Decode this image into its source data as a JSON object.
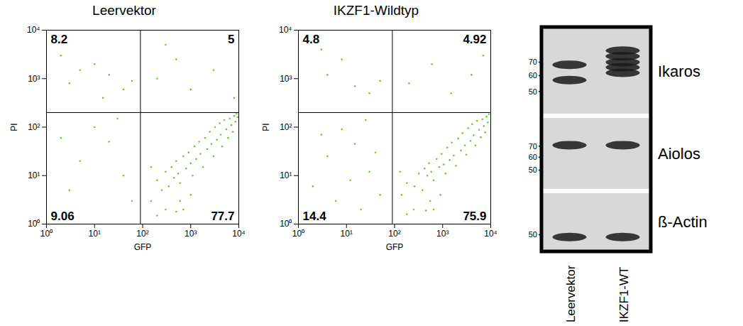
{
  "chart_data": [
    {
      "type": "scatter",
      "title": "Leervektor",
      "x_label": "GFP",
      "y_label": "PI",
      "color": "#66cc33",
      "marker": "dot",
      "log": true,
      "xlim": [
        1,
        10000
      ],
      "ylim": [
        1,
        10000
      ],
      "xticks": [
        {
          "value": 1,
          "label": "10⁰"
        },
        {
          "value": 10,
          "label": "10¹"
        },
        {
          "value": 100,
          "label": "10²"
        },
        {
          "value": 1000,
          "label": "10³"
        },
        {
          "value": 10000,
          "label": "10⁴"
        }
      ],
      "yticks": [
        {
          "value": 1,
          "label": "10⁰"
        },
        {
          "value": 10,
          "label": "10¹"
        },
        {
          "value": 100,
          "label": "10²"
        },
        {
          "value": 1000,
          "label": "10³"
        },
        {
          "value": 10000,
          "label": "10⁴"
        }
      ],
      "gate_x": 90,
      "gate_y": 200,
      "quadrants": {
        "top_left": 8.2,
        "top_right": 5,
        "bottom_left": 9.06,
        "bottom_right": 77.7
      },
      "x": [
        150,
        200,
        250,
        300,
        350,
        400,
        450,
        500,
        550,
        600,
        700,
        800,
        900,
        1000,
        1100,
        1200,
        1300,
        1500,
        1600,
        1800,
        2000,
        2200,
        2500,
        2700,
        3000,
        3200,
        3500,
        4000,
        4200,
        4500,
        5000,
        5500,
        6000,
        6500,
        7000,
        7500,
        8000,
        8500,
        9000,
        9500,
        300,
        600,
        1000,
        150,
        700,
        200,
        500,
        5,
        3,
        10,
        20,
        2,
        40,
        15,
        60,
        200,
        500,
        1000,
        3000,
        8000,
        300,
        5,
        3,
        20,
        40,
        10,
        60,
        2,
        30
      ],
      "values": [
        3,
        8,
        5,
        12,
        6,
        15,
        9,
        20,
        11,
        7,
        25,
        14,
        30,
        18,
        10,
        40,
        22,
        50,
        28,
        15,
        60,
        35,
        80,
        45,
        25,
        100,
        55,
        120,
        70,
        40,
        140,
        90,
        60,
        150,
        110,
        80,
        170,
        130,
        190,
        160,
        2,
        3,
        4,
        15,
        2,
        1.5,
        1.8,
        1500,
        800,
        2000,
        1200,
        3000,
        600,
        400,
        900,
        1000,
        2500,
        600,
        1500,
        400,
        5000,
        20,
        5,
        50,
        10,
        100,
        3,
        60,
        150
      ]
    },
    {
      "type": "scatter",
      "title": "IKZF1-Wildtyp",
      "x_label": "GFP",
      "y_label": "PI",
      "color": "#66cc33",
      "marker": "dot",
      "log": true,
      "xlim": [
        1,
        10000
      ],
      "ylim": [
        1,
        10000
      ],
      "xticks": [
        {
          "value": 1,
          "label": "10⁰"
        },
        {
          "value": 10,
          "label": "10¹"
        },
        {
          "value": 100,
          "label": "10²"
        },
        {
          "value": 1000,
          "label": "10³"
        },
        {
          "value": 10000,
          "label": "10⁴"
        }
      ],
      "yticks": [
        {
          "value": 1,
          "label": "10⁰"
        },
        {
          "value": 10,
          "label": "10¹"
        },
        {
          "value": 100,
          "label": "10²"
        },
        {
          "value": 1000,
          "label": "10³"
        },
        {
          "value": 10000,
          "label": "10⁴"
        }
      ],
      "gate_x": 90,
      "gate_y": 200,
      "quadrants": {
        "top_left": 4.8,
        "top_right": 4.92,
        "bottom_left": 14.4,
        "bottom_right": 75.9
      },
      "x": [
        140,
        180,
        260,
        320,
        380,
        420,
        480,
        520,
        580,
        650,
        750,
        850,
        950,
        1050,
        1150,
        1250,
        1400,
        1550,
        1700,
        1900,
        2100,
        2400,
        2600,
        2900,
        3100,
        3400,
        3800,
        4100,
        4400,
        4800,
        5200,
        5700,
        6200,
        6700,
        7200,
        7700,
        8200,
        8700,
        9200,
        250,
        550,
        900,
        130,
        650,
        180,
        450,
        4,
        8,
        15,
        3,
        30,
        50,
        200,
        600,
        1500,
        4000,
        7000,
        4,
        2,
        15,
        30,
        8,
        50,
        3,
        25,
        12,
        6,
        40,
        20
      ],
      "values": [
        4,
        7,
        6,
        11,
        5,
        14,
        10,
        18,
        12,
        8,
        22,
        15,
        28,
        17,
        11,
        38,
        21,
        48,
        26,
        16,
        58,
        33,
        75,
        42,
        27,
        95,
        52,
        115,
        68,
        42,
        135,
        88,
        62,
        145,
        105,
        78,
        165,
        125,
        185,
        2,
        3,
        4,
        12,
        2,
        1.6,
        1.9,
        1200,
        2500,
        700,
        4000,
        500,
        900,
        800,
        2000,
        500,
        1200,
        3000,
        25,
        6,
        45,
        12,
        90,
        4,
        70,
        140,
        8,
        3,
        30,
        2
      ]
    }
  ],
  "blot": {
    "lanes": [
      "Leervektor",
      "IKZF1-WT"
    ],
    "kDa_range": [
      100,
      40
    ],
    "panels": [
      {
        "label": "Ikaros",
        "markers": [
          70,
          60,
          50
        ],
        "bands": [
          {
            "lane": "Leervektor",
            "kDa": 68
          },
          {
            "lane": "Leervektor",
            "kDa": 57
          },
          {
            "lane": "IKZF1-WT",
            "kDa": 80
          },
          {
            "lane": "IKZF1-WT",
            "kDa": 75
          },
          {
            "lane": "IKZF1-WT",
            "kDa": 70
          },
          {
            "lane": "IKZF1-WT",
            "kDa": 66
          },
          {
            "lane": "IKZF1-WT",
            "kDa": 62
          }
        ]
      },
      {
        "label": "Aiolos",
        "markers": [
          70,
          60,
          50
        ],
        "bands": [
          {
            "lane": "Leervektor",
            "kDa": 71
          },
          {
            "lane": "IKZF1-WT",
            "kDa": 71
          }
        ]
      },
      {
        "label": "ß-Actin",
        "markers": [
          50
        ],
        "bands": [
          {
            "lane": "Leervektor",
            "kDa": 48
          },
          {
            "lane": "IKZF1-WT",
            "kDa": 48
          }
        ]
      }
    ]
  }
}
